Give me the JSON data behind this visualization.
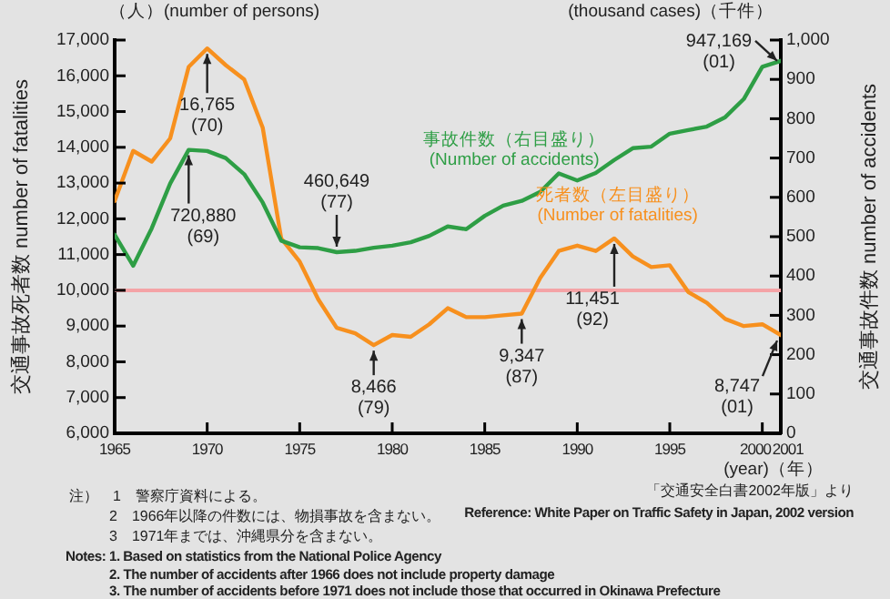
{
  "chart_data": {
    "type": "line",
    "x": [
      1965,
      1966,
      1967,
      1968,
      1969,
      1970,
      1971,
      1972,
      1973,
      1974,
      1975,
      1976,
      1977,
      1978,
      1979,
      1980,
      1981,
      1982,
      1983,
      1984,
      1985,
      1986,
      1987,
      1988,
      1989,
      1990,
      1991,
      1992,
      1993,
      1994,
      1995,
      1996,
      1997,
      1998,
      1999,
      2000,
      2001
    ],
    "series": [
      {
        "name": "事故件数（右目盛り）\n(Number of accidents)",
        "color": "#2e9e45",
        "axis": "y2",
        "values": [
          505,
          426,
          521,
          635,
          720.88,
          718,
          700,
          659,
          587,
          490,
          473,
          471,
          460.649,
          464,
          472,
          477,
          486,
          502,
          526,
          519,
          553,
          579,
          591,
          614,
          661,
          643,
          662,
          695,
          725,
          729,
          762,
          771,
          780,
          804,
          850,
          932,
          947.169
        ]
      },
      {
        "name": "死者数（左目盛り）\n(Number of fatalities)",
        "color": "#f7901e",
        "values": [
          12500,
          13900,
          13600,
          14250,
          16250,
          16765,
          16300,
          15900,
          14550,
          11450,
          10800,
          9750,
          8950,
          8800,
          8466,
          8750,
          8700,
          9050,
          9500,
          9250,
          9250,
          9300,
          9347,
          10350,
          11100,
          11250,
          11100,
          11451,
          10950,
          10650,
          10700,
          9950,
          9650,
          9200,
          9000,
          9050,
          8747
        ]
      }
    ],
    "xlim": [
      1965,
      2001
    ],
    "xticks": [
      1965,
      1970,
      1975,
      1980,
      1985,
      1990,
      1995,
      2000,
      2001
    ],
    "ylim": [
      6000,
      17000
    ],
    "yticks": [
      {
        "value": 6000,
        "label": "6,000"
      },
      {
        "value": 7000,
        "label": "7,000"
      },
      {
        "value": 8000,
        "label": "8,000"
      },
      {
        "value": 9000,
        "label": "9,000"
      },
      {
        "value": 10000,
        "label": "10,000"
      },
      {
        "value": 11000,
        "label": "11,000"
      },
      {
        "value": 12000,
        "label": "12,000"
      },
      {
        "value": 13000,
        "label": "13,000"
      },
      {
        "value": 14000,
        "label": "14,000"
      },
      {
        "value": 15000,
        "label": "15,000"
      },
      {
        "value": 16000,
        "label": "16,000"
      },
      {
        "value": 17000,
        "label": "17,000"
      }
    ],
    "y2lim": [
      0,
      1000
    ],
    "y2ticks": [
      0,
      100,
      200,
      300,
      400,
      500,
      600,
      700,
      800,
      900,
      {
        "value": 1000,
        "label": "1,000"
      }
    ],
    "xlabel": "(year)（年）",
    "ylabel": "交通事故死者数 number of fatalities",
    "y2label": "交通事故件数 number of accidents",
    "ref_lines": [
      {
        "axis": "y",
        "value": 10000,
        "color": "#f4a3a6"
      }
    ],
    "grid": false,
    "legend": false,
    "marker": "none",
    "line_style": "solid",
    "annotations": [
      {
        "text": "16,765\n(70)",
        "x": 1970,
        "y": 16765
      },
      {
        "text": "720,880\n(69)",
        "x": 1969,
        "y": 13930
      },
      {
        "text": "460,649\n(77)",
        "x": 1977,
        "y": 11067
      },
      {
        "text": "947,169\n(01)",
        "x": 2001,
        "y": 16419
      },
      {
        "text": "8,466\n(79)",
        "x": 1979,
        "y": 8466
      },
      {
        "text": "9,347\n(87)",
        "x": 1987,
        "y": 9347
      },
      {
        "text": "11,451\n(92)",
        "x": 1992,
        "y": 11451
      },
      {
        "text": "8,747\n(01)",
        "x": 2001,
        "y": 8747
      },
      "（人）(number of persons)",
      "(thousand cases)（千件）",
      "「交通安全白書2002年版」より",
      "Reference: White Paper on Traffic Safety in Japan, 2002 version",
      "注）　1　警察庁資料による。",
      "2　1966年以降の件数には、物損事故を含まない。",
      "3　1971年までは、沖縄県分を含まない。",
      "Notes: 1. Based on statistics from the National Police Agency",
      "2. The number of accidents after 1966 does not include property damage",
      "3. The number of accidents before 1971 does not include those that occurred in Okinawa Prefecture"
    ]
  }
}
